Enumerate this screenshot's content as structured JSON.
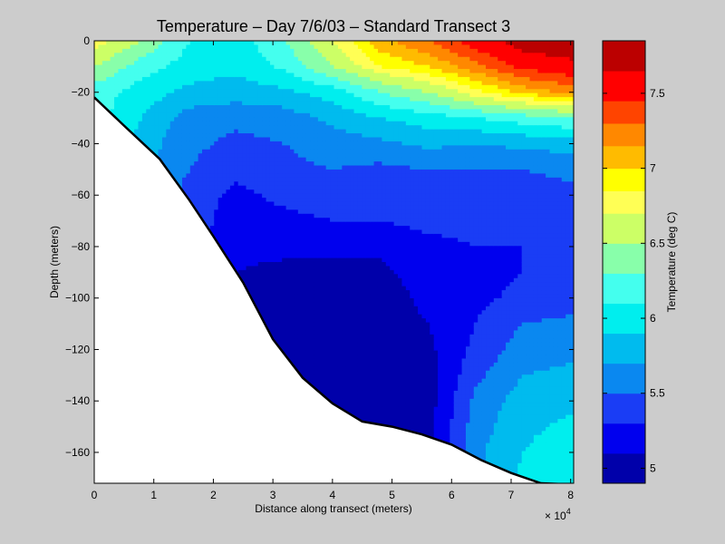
{
  "chart_data": {
    "type": "heatmap",
    "subtype": "filled-contour",
    "title": "Temperature – Day 7/6/03 – Standard Transect 3",
    "xlabel": "Distance along transect (meters)",
    "ylabel": "Depth (meters)",
    "x_exponent_label": "× 10",
    "x_exponent_power": "4",
    "xlim": [
      0,
      80500
    ],
    "ylim": [
      -172,
      0
    ],
    "x_ticks": [
      0,
      10000,
      20000,
      30000,
      40000,
      50000,
      60000,
      70000,
      80000
    ],
    "x_tick_labels": [
      "0",
      "1",
      "2",
      "3",
      "4",
      "5",
      "6",
      "7",
      "8"
    ],
    "y_ticks": [
      0,
      -20,
      -40,
      -60,
      -80,
      -100,
      -120,
      -140,
      -160
    ],
    "y_tick_labels": [
      "0",
      "−20",
      "−40",
      "−60",
      "−80",
      "−100",
      "−120",
      "−140",
      "−160"
    ],
    "colorbar": {
      "label": "Temperature (deg C)",
      "range": [
        4.9,
        7.85
      ],
      "ticks": [
        5,
        5.5,
        6,
        6.5,
        7,
        7.5
      ],
      "tick_labels": [
        "5",
        "5.5",
        "6",
        "6.5",
        "7",
        "7.5"
      ],
      "levels": [
        {
          "min": 4.9,
          "max": 5.1,
          "color": "#0000aa"
        },
        {
          "min": 5.1,
          "max": 5.3,
          "color": "#0000ee"
        },
        {
          "min": 5.3,
          "max": 5.5,
          "color": "#1a3df5"
        },
        {
          "min": 5.5,
          "max": 5.7,
          "color": "#0a88f0"
        },
        {
          "min": 5.7,
          "max": 5.9,
          "color": "#00bbee"
        },
        {
          "min": 5.9,
          "max": 6.1,
          "color": "#00eeee"
        },
        {
          "min": 6.1,
          "max": 6.3,
          "color": "#44ffee"
        },
        {
          "min": 6.3,
          "max": 6.5,
          "color": "#88ffaa"
        },
        {
          "min": 6.5,
          "max": 6.7,
          "color": "#ccff66"
        },
        {
          "min": 6.7,
          "max": 6.85,
          "color": "#ffff55"
        },
        {
          "min": 6.85,
          "max": 7.0,
          "color": "#ffff00"
        },
        {
          "min": 7.0,
          "max": 7.15,
          "color": "#ffbb00"
        },
        {
          "min": 7.15,
          "max": 7.3,
          "color": "#ff8800"
        },
        {
          "min": 7.3,
          "max": 7.45,
          "color": "#ff4400"
        },
        {
          "min": 7.45,
          "max": 7.65,
          "color": "#ff0000"
        },
        {
          "min": 7.65,
          "max": 7.85,
          "color": "#bb0000"
        }
      ]
    },
    "bottom_profile": [
      [
        0,
        -22
      ],
      [
        5000,
        -33
      ],
      [
        11000,
        -46
      ],
      [
        16000,
        -62
      ],
      [
        20000,
        -76
      ],
      [
        25000,
        -94
      ],
      [
        30000,
        -116
      ],
      [
        35000,
        -131
      ],
      [
        40000,
        -141
      ],
      [
        45000,
        -148
      ],
      [
        50000,
        -150
      ],
      [
        55000,
        -153
      ],
      [
        60000,
        -157
      ],
      [
        65000,
        -163
      ],
      [
        70000,
        -168
      ],
      [
        75000,
        -172
      ],
      [
        80500,
        -172.5
      ]
    ],
    "temperature_profiles": [
      {
        "x": 0,
        "z": [
          0,
          -10,
          -20
        ],
        "t": [
          6.8,
          6.5,
          6.2
        ]
      },
      {
        "x": 8000,
        "z": [
          0,
          -10,
          -20,
          -30,
          -40
        ],
        "t": [
          6.5,
          6.2,
          6.0,
          5.9,
          5.8
        ]
      },
      {
        "x": 16000,
        "z": [
          0,
          -10,
          -20,
          -30,
          -40,
          -50,
          -60
        ],
        "t": [
          6.1,
          6.0,
          5.85,
          5.6,
          5.55,
          5.5,
          5.4
        ]
      },
      {
        "x": 24000,
        "z": [
          0,
          -10,
          -20,
          -30,
          -40,
          -50,
          -60,
          -70,
          -80,
          -90
        ],
        "t": [
          6.0,
          5.95,
          5.8,
          5.55,
          5.45,
          5.35,
          5.25,
          5.2,
          5.15,
          5.1
        ]
      },
      {
        "x": 32000,
        "z": [
          0,
          -10,
          -20,
          -30,
          -40,
          -50,
          -60,
          -70,
          -80,
          -90,
          -100,
          -110,
          -120
        ],
        "t": [
          6.3,
          6.15,
          5.85,
          5.6,
          5.5,
          5.45,
          5.35,
          5.25,
          5.15,
          5.05,
          5.0,
          4.95,
          4.95
        ]
      },
      {
        "x": 40000,
        "z": [
          0,
          -10,
          -20,
          -30,
          -40,
          -50,
          -60,
          -70,
          -80,
          -90,
          -100,
          -110,
          -120,
          -130,
          -140
        ],
        "t": [
          6.7,
          6.5,
          6.0,
          5.75,
          5.6,
          5.5,
          5.4,
          5.3,
          5.15,
          5.05,
          5.0,
          4.97,
          4.95,
          4.95,
          4.95
        ]
      },
      {
        "x": 48000,
        "z": [
          0,
          -10,
          -20,
          -30,
          -40,
          -50,
          -60,
          -70,
          -80,
          -90,
          -100,
          -110,
          -120,
          -130,
          -140
        ],
        "t": [
          7.1,
          6.85,
          6.3,
          5.9,
          5.65,
          5.45,
          5.4,
          5.3,
          5.15,
          5.05,
          5.0,
          4.98,
          4.97,
          4.96,
          4.96
        ]
      },
      {
        "x": 56000,
        "z": [
          0,
          -10,
          -20,
          -30,
          -40,
          -50,
          -60,
          -70,
          -80,
          -90,
          -100,
          -110,
          -120,
          -130,
          -140,
          -150
        ],
        "t": [
          7.3,
          7.0,
          6.5,
          6.0,
          5.75,
          5.5,
          5.4,
          5.35,
          5.25,
          5.2,
          5.15,
          5.1,
          5.05,
          5.0,
          5.0,
          5.02
        ]
      },
      {
        "x": 64000,
        "z": [
          0,
          -10,
          -20,
          -30,
          -40,
          -50,
          -60,
          -70,
          -80,
          -90,
          -100,
          -110,
          -120,
          -130,
          -140,
          -150,
          -160
        ],
        "t": [
          7.55,
          7.25,
          6.8,
          6.1,
          5.7,
          5.5,
          5.4,
          5.35,
          5.3,
          5.25,
          5.25,
          5.3,
          5.35,
          5.45,
          5.55,
          5.6,
          5.65
        ]
      },
      {
        "x": 72000,
        "z": [
          0,
          -10,
          -20,
          -30,
          -40,
          -50,
          -60,
          -70,
          -80,
          -90,
          -100,
          -110,
          -120,
          -130,
          -140,
          -150,
          -160,
          -170
        ],
        "t": [
          7.75,
          7.5,
          7.05,
          6.2,
          5.75,
          5.5,
          5.4,
          5.35,
          5.3,
          5.3,
          5.35,
          5.5,
          5.6,
          5.7,
          5.8,
          5.85,
          5.9,
          5.95
        ]
      },
      {
        "x": 80500,
        "z": [
          0,
          -10,
          -20,
          -30,
          -40,
          -50,
          -60,
          -70,
          -80,
          -90,
          -100,
          -110,
          -120,
          -130,
          -140,
          -150,
          -160,
          -170
        ],
        "t": [
          7.8,
          7.6,
          7.2,
          6.3,
          5.8,
          5.55,
          5.45,
          5.4,
          5.35,
          5.35,
          5.4,
          5.55,
          5.65,
          5.75,
          5.85,
          5.95,
          6.05,
          6.1
        ]
      }
    ]
  }
}
